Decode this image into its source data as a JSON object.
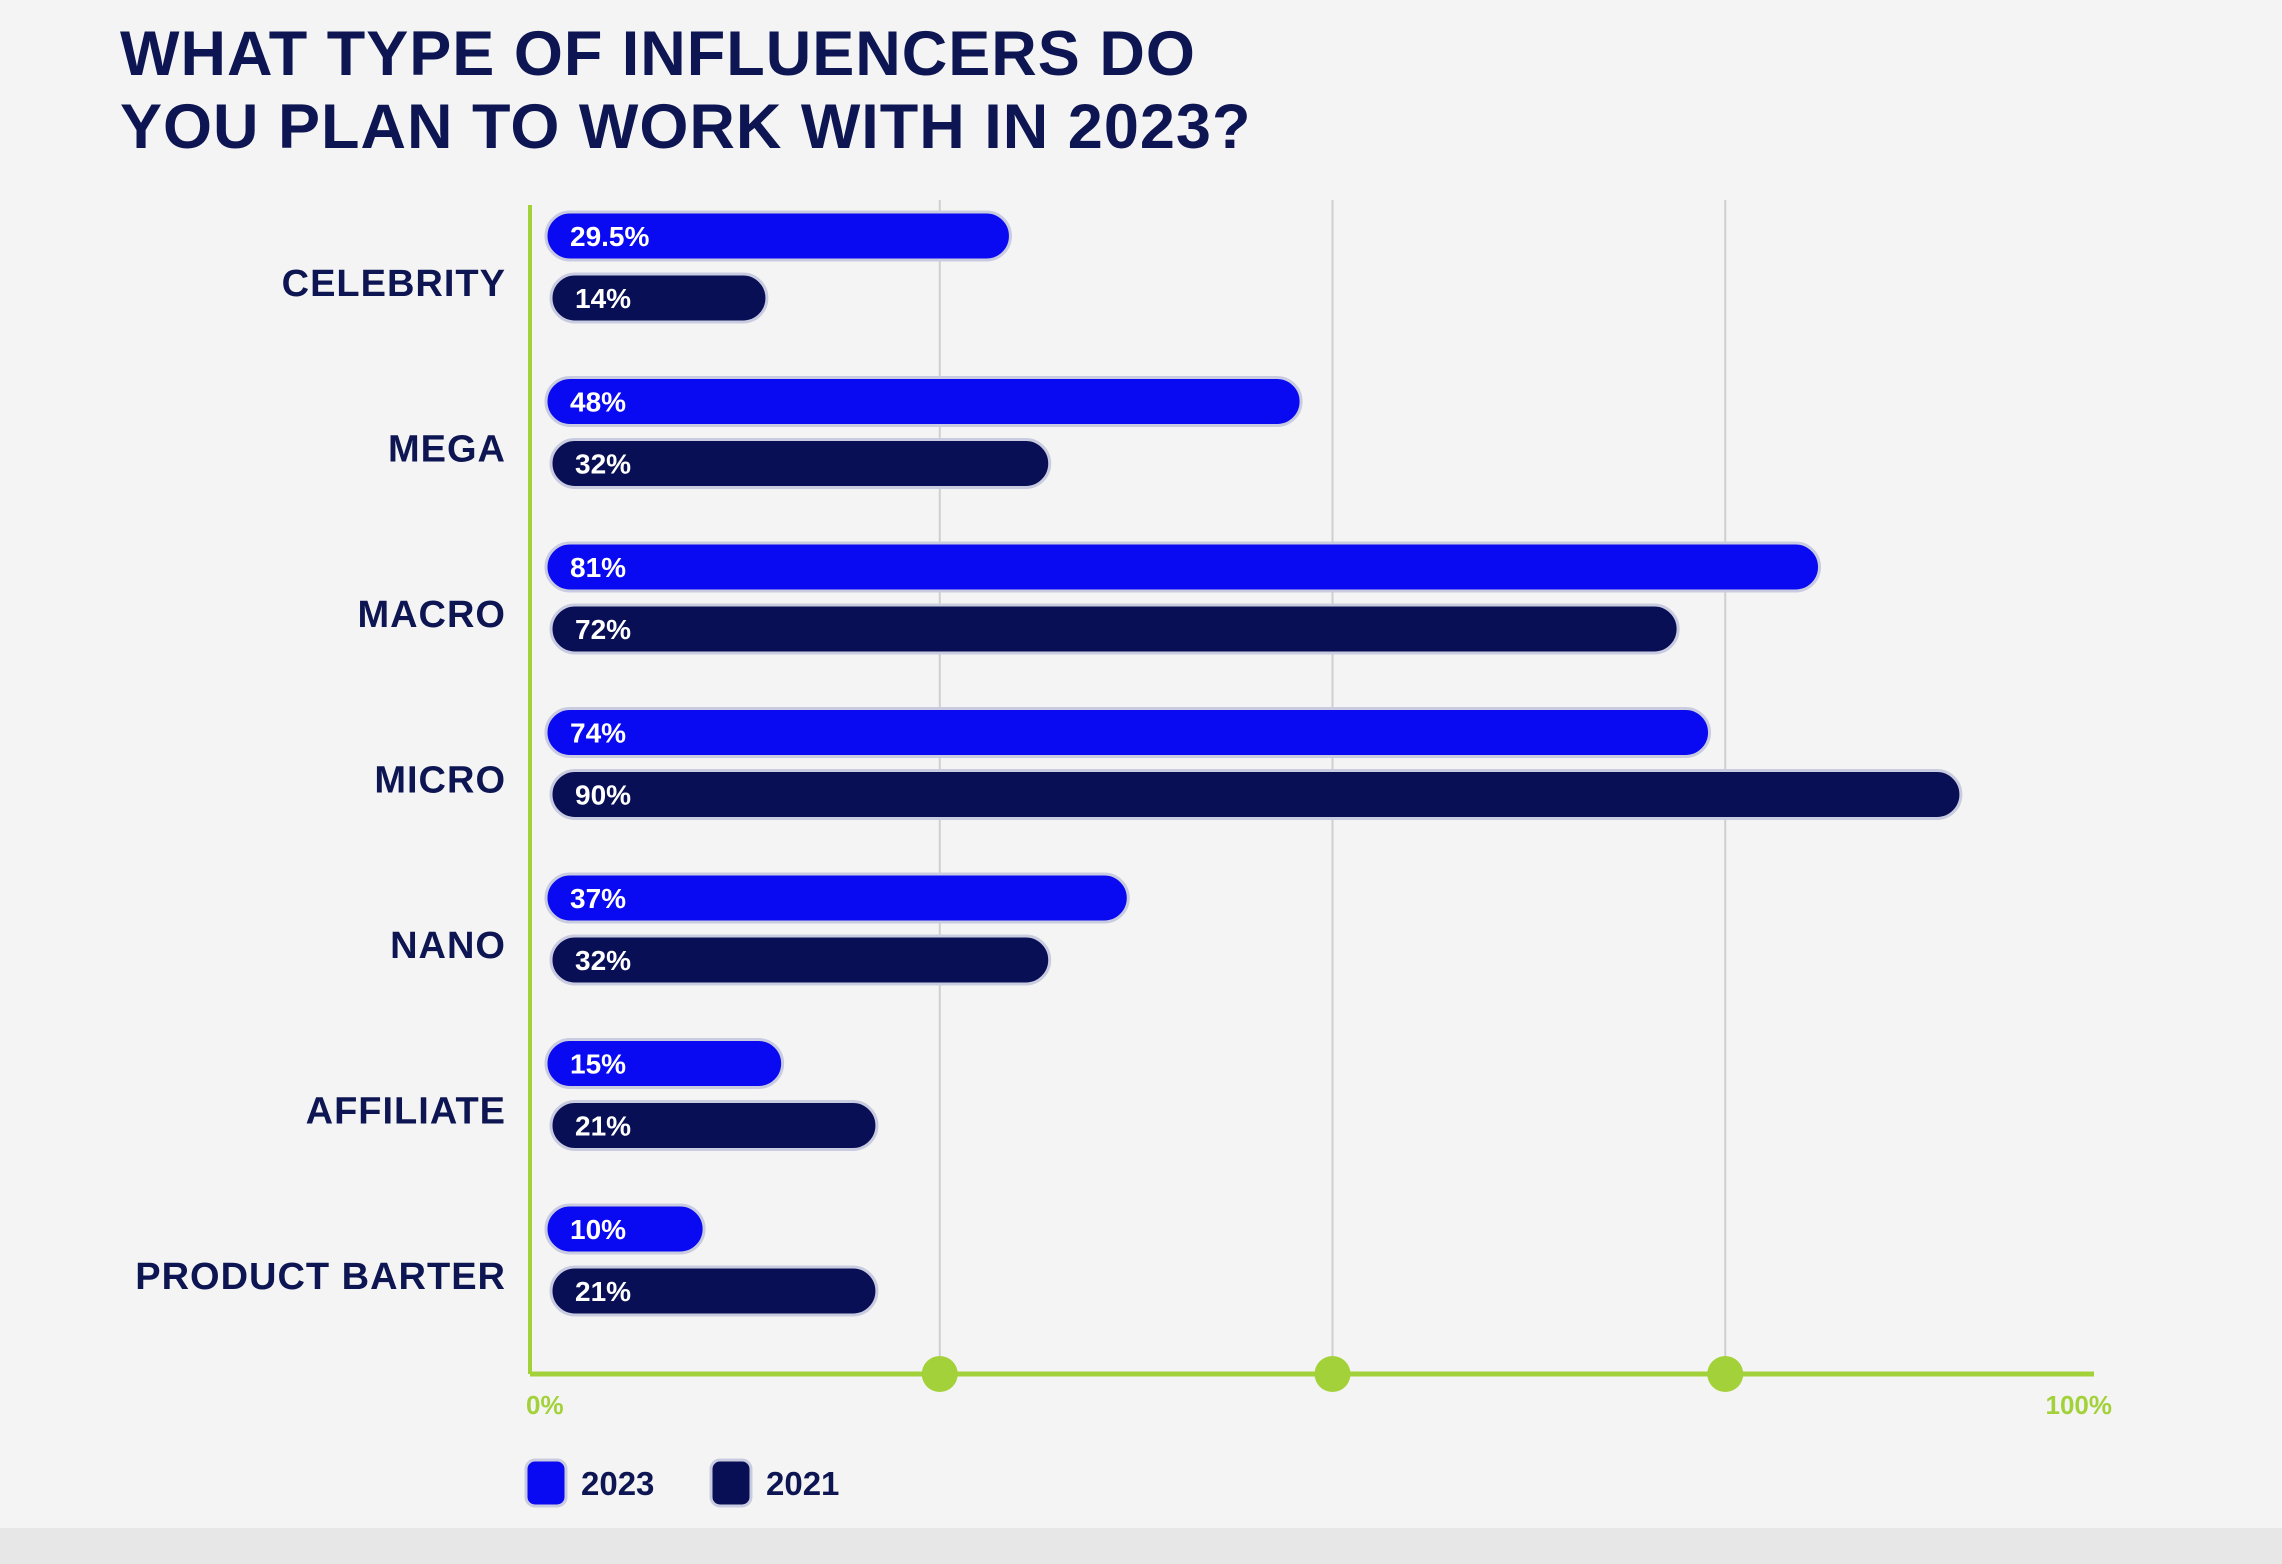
{
  "title_lines": [
    "WHAT TYPE OF INFLUENCERS DO",
    "YOU PLAN TO WORK WITH IN 2023?"
  ],
  "colors": {
    "series_2023": "#0a0af2",
    "series_2021": "#080f55",
    "axis": "#a3d13a",
    "label": "#0d1652",
    "grid": "#cfcfcf",
    "background": "#f4f4f4"
  },
  "chart_data": {
    "type": "bar",
    "orientation": "horizontal",
    "title": "WHAT TYPE OF INFLUENCERS DO YOU PLAN TO WORK WITH IN 2023?",
    "categories": [
      "CELEBRITY",
      "MEGA",
      "MACRO",
      "MICRO",
      "NANO",
      "AFFILIATE",
      "PRODUCT BARTER"
    ],
    "series": [
      {
        "name": "2023",
        "values": [
          29.5,
          48,
          81,
          74,
          37,
          15,
          10
        ],
        "labels": [
          "29.5%",
          "48%",
          "81%",
          "74%",
          "37%",
          "15%",
          "10%"
        ]
      },
      {
        "name": "2021",
        "values": [
          14,
          32,
          72,
          90,
          32,
          21,
          21
        ],
        "labels": [
          "14%",
          "32%",
          "72%",
          "90%",
          "32%",
          "21%",
          "21%"
        ]
      }
    ],
    "xlim": [
      0,
      100
    ],
    "x_ticks": [
      "0%",
      "100%"
    ],
    "xlabel": "",
    "ylabel": "",
    "grid": true,
    "legend_position": "bottom-left"
  }
}
